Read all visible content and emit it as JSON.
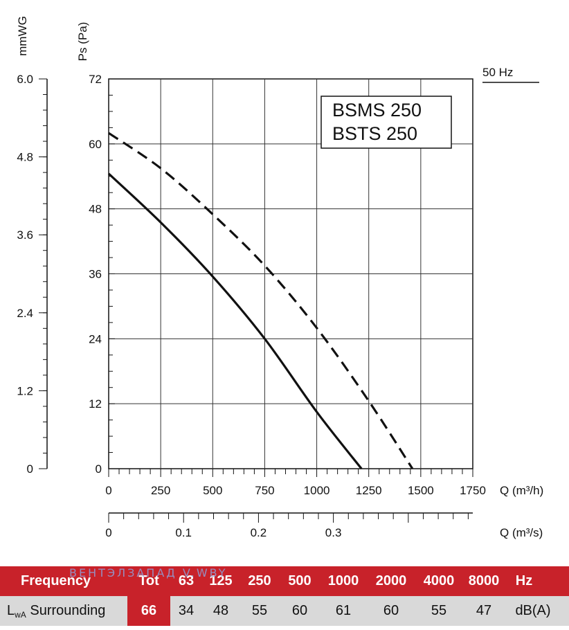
{
  "chart_data": {
    "type": "line",
    "models": [
      "BSMS 250",
      "BSTS 250"
    ],
    "frequency_label": "50 Hz",
    "y_left_label": "mmWG",
    "y_left_ticks": [
      "6.0",
      "4.8",
      "3.6",
      "2.4",
      "1.2",
      "0"
    ],
    "y_label": "Ps (Pa)",
    "y_ticks": [
      "72",
      "60",
      "48",
      "36",
      "24",
      "12",
      "0"
    ],
    "ylim": [
      0,
      72
    ],
    "x_label": "Q (m³/h)",
    "x_ticks": [
      "0",
      "250",
      "500",
      "750",
      "1000",
      "1250",
      "1500",
      "1750"
    ],
    "xlim": [
      0,
      1750
    ],
    "x2_label": "Q (m³/s)",
    "x2_ticks": [
      "0",
      "0.1",
      "0.2",
      "0.3"
    ],
    "grid": true,
    "series": [
      {
        "style": "solid",
        "x": [
          0,
          250,
          500,
          750,
          1000,
          1215
        ],
        "y": [
          54.5,
          45.5,
          35.5,
          24,
          10.5,
          0
        ]
      },
      {
        "style": "dashed",
        "x": [
          0,
          250,
          500,
          750,
          1000,
          1250,
          1460
        ],
        "y": [
          62,
          55.5,
          47,
          37.5,
          26,
          12.5,
          0
        ]
      }
    ]
  },
  "sound_table": {
    "header_label": "Frequency",
    "header_values": [
      "Tot",
      "63",
      "125",
      "250",
      "500",
      "1000",
      "2000",
      "4000",
      "8000",
      "Hz"
    ],
    "row_label_main": "L",
    "row_label_sub": "wA",
    "row_label_rest": " Surrounding",
    "row_values": [
      "66",
      "34",
      "48",
      "55",
      "60",
      "61",
      "60",
      "55",
      "47",
      "dB(A)"
    ]
  },
  "watermark": "ВЕНТЭЛЗАПАД  V.WBY"
}
